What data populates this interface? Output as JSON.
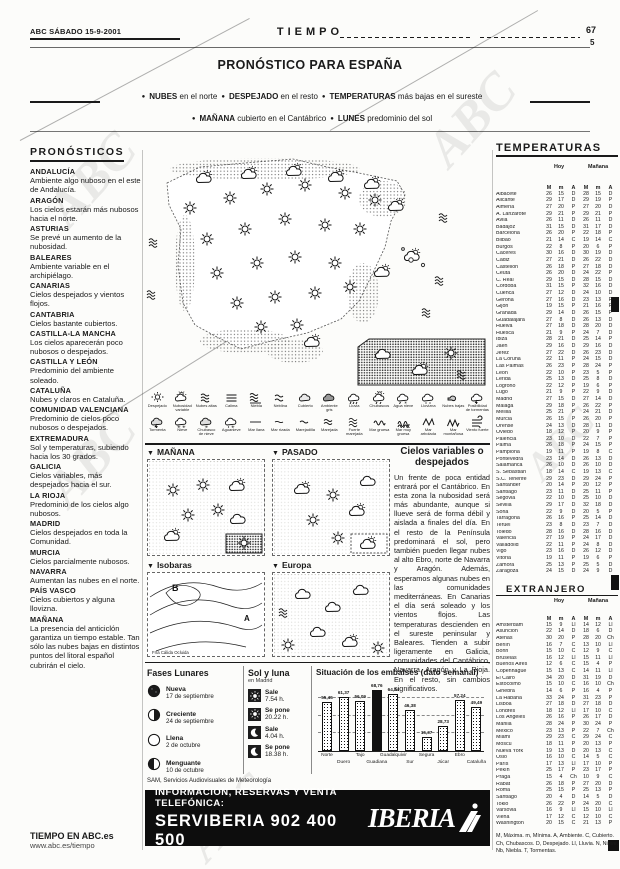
{
  "header": {
    "edition": "ABC SÁBADO 15-9-2001",
    "section": "TIEMPO",
    "page_number": "67",
    "page_sub": "5"
  },
  "banner": {
    "title": "PRONÓSTICO PARA ESPAÑA",
    "bullet_icon": "●",
    "line1": [
      {
        "strong": "NUBES",
        "rest": "en el norte"
      },
      {
        "strong": "DESPEJADO",
        "rest": "en el resto"
      },
      {
        "strong": "TEMPERATURAS",
        "rest": "más bajas en el sureste"
      }
    ],
    "line2": [
      {
        "strong": "MAÑANA",
        "rest": "cubierto en el Cantábrico"
      },
      {
        "strong": "LUNES",
        "rest": "predominio del sol"
      }
    ]
  },
  "pronosticos": {
    "title": "PRONÓSTICOS",
    "entries": [
      {
        "region": "ANDALUCÍA",
        "text": "Ambiente algo nuboso en el este de Andalucía."
      },
      {
        "region": "ARAGÓN",
        "text": "Los cielos estarán más nubosos hacia el norte."
      },
      {
        "region": "ASTURIAS",
        "text": "Se prevé un aumento de la nubosidad."
      },
      {
        "region": "BALEARES",
        "text": "Ambiente variable en el archipiélago."
      },
      {
        "region": "CANARIAS",
        "text": "Cielos despejados y vientos flojos."
      },
      {
        "region": "CANTABRIA",
        "text": "Cielos bastante cubiertos."
      },
      {
        "region": "CASTILLA-LA MANCHA",
        "text": "Los cielos aparecerán poco nubosos o despejados."
      },
      {
        "region": "CASTILLA Y LEÓN",
        "text": "Predominio del ambiente soleado."
      },
      {
        "region": "CATALUÑA",
        "text": "Nubes y claros en Cataluña."
      },
      {
        "region": "COMUNIDAD VALENCIANA",
        "text": "Predominio de cielos poco nubosos o despejados."
      },
      {
        "region": "EXTREMADURA",
        "text": "Sol y temperaturas, subiendo hacia los 30 grados."
      },
      {
        "region": "GALICIA",
        "text": "Cielos variables, más despejados hacia el sur."
      },
      {
        "region": "LA RIOJA",
        "text": "Predominio de los cielos algo nubosos."
      },
      {
        "region": "MADRID",
        "text": "Cielos despejados en toda la Comunidad."
      },
      {
        "region": "MURCIA",
        "text": "Cielos parcialmente nubosos."
      },
      {
        "region": "NAVARRA",
        "text": "Aumentan las nubes en el norte."
      },
      {
        "region": "PAÍS VASCO",
        "text": "Cielos cubiertos y alguna llovizna."
      },
      {
        "region": "MAÑANA",
        "text": "La presencia del anticiclón garantiza un tiempo estable. Tan sólo las nubes bajas en distintos puntos del litoral español cubrirán el cielo."
      }
    ],
    "footer_title": "TIEMPO EN ABC.es",
    "footer_url": "www.abc.es/tiempo"
  },
  "maps": {
    "triangle_icon": "▼",
    "manana_label": "MAÑANA",
    "pasado_label": "PASADO",
    "isobaras_label": "Isobaras",
    "europa_label": "Europa",
    "isobaras_caption": "Fría  Cálida  Ocluida",
    "isobar_b": "B",
    "isobar_a": "A"
  },
  "article": {
    "title": "Cielos variables o despejados",
    "body": "Un frente de poca entidad entrará por el Cantábrico. En esta zona la nubosidad será más abundante, aunque si llueve será de forma débil y aislada a finales del día. En el resto de la Península predominará el sol, pero también pueden llegar nubes al alto Ebro, norte de Navarra y Aragón. Además, esperamos algunas nubes en las comunidades mediterráneas. En Canarias el día será soleado y los vientos flojos. Las temperaturas descienden en el sureste peninsular y Baleares. Tienden a subir ligeramente en Galicia, comunidades del Cantábrico, Navarra, Aragón y La Rioja. En el resto, sin cambios significativos."
  },
  "legend": {
    "row1": [
      {
        "icon": "sun-icon",
        "label": "Despejado"
      },
      {
        "icon": "sun-cloud-icon",
        "label": "Nubosidad variable"
      },
      {
        "icon": "high-clouds-icon",
        "label": "Nubes altas"
      },
      {
        "icon": "haze-icon",
        "label": "Calima"
      },
      {
        "icon": "fog-icon",
        "label": "Niebla"
      },
      {
        "icon": "mist-icon",
        "label": "Neblina"
      },
      {
        "icon": "overcast-icon",
        "label": "Cubierto"
      },
      {
        "icon": "grey-sky-icon",
        "label": "Ambiente gris"
      },
      {
        "icon": "rain-icon",
        "label": "Lluvia"
      },
      {
        "icon": "showers-icon",
        "label": "Chubascos"
      },
      {
        "icon": "sleet-icon",
        "label": "Agua nieve"
      },
      {
        "icon": "drizzle-icon",
        "label": "Llovizna"
      },
      {
        "icon": "low-clouds-icon",
        "label": "Nubes bajas"
      },
      {
        "icon": "possible-storm-icon",
        "label": "Posibilidad de tormentas"
      }
    ],
    "row2": [
      {
        "icon": "storm-icon",
        "label": "Tormenta"
      },
      {
        "icon": "snow-icon",
        "label": "Nieve"
      },
      {
        "icon": "snow-shower-icon",
        "label": "Chubasco de nieve"
      },
      {
        "icon": "sleet2-icon",
        "label": "Aguanieve"
      },
      {
        "icon": "sea-calm-icon",
        "label": "Mar llana"
      },
      {
        "icon": "sea-ripple-icon",
        "label": "Mar rizada"
      },
      {
        "icon": "sea-smooth-icon",
        "label": "Marejadilla"
      },
      {
        "icon": "sea-slight-icon",
        "label": "Marejada"
      },
      {
        "icon": "sea-moderate-icon",
        "label": "Fuerte marejada"
      },
      {
        "icon": "sea-rough-icon",
        "label": "Mar gruesa"
      },
      {
        "icon": "sea-very-rough-icon",
        "label": "Mar muy gruesa"
      },
      {
        "icon": "sea-high-icon",
        "label": "Mar arbolada"
      },
      {
        "icon": "sea-mountain-icon",
        "label": "Mar montañosa"
      },
      {
        "icon": "wind-icon",
        "label": "Viento fuerte"
      }
    ]
  },
  "fases": {
    "title": "Fases Lunares",
    "items": [
      {
        "icon": "moon-new-icon",
        "name": "Nueva",
        "date": "17 de septiembre"
      },
      {
        "icon": "moon-first-quarter-icon",
        "name": "Creciente",
        "date": "24 de septiembre"
      },
      {
        "icon": "moon-full-icon",
        "name": "Llena",
        "date": "2 de octubre"
      },
      {
        "icon": "moon-last-quarter-icon",
        "name": "Menguante",
        "date": "10 de octubre"
      }
    ]
  },
  "sol_luna": {
    "title": "Sol y luna",
    "subtitle": "en Madrid",
    "items": [
      {
        "icon": "sunrise-icon",
        "label": "Sale",
        "value": "7.54 h."
      },
      {
        "icon": "sunset-icon",
        "label": "Se pone",
        "value": "20.22 h."
      },
      {
        "icon": "moonrise-icon",
        "label": "Sale",
        "value": "4.04 h."
      },
      {
        "icon": "moonset-icon",
        "label": "Se pone",
        "value": "18.38 h."
      }
    ]
  },
  "chart_data": {
    "type": "bar",
    "title": "Situación de los embalses (dato semanal)",
    "categories": [
      "Norte",
      "Duero",
      "Tajo",
      "Guadiana",
      "Guadalquivir",
      "Sur",
      "Segura",
      "Júcar",
      "Ebro",
      "Cataluña"
    ],
    "values": [
      55.45,
      61.37,
      56.09,
      68.76,
      64.84,
      46.38,
      15.37,
      28.73,
      57.24,
      49.49
    ],
    "value_labels": [
      "55,45",
      "61,37",
      "56,09",
      "68,76",
      "64,84",
      "46,38",
      "15,37",
      "28,73",
      "57,24",
      "49,49"
    ],
    "xlabel": "",
    "ylabel": "",
    "ylim": [
      0,
      80
    ],
    "grid": "dashed-horizontal",
    "legend_position": "none",
    "highlight_category": "Guadiana"
  },
  "sam_credit": "SAM, Servicios Audiovisuales de Meteorología",
  "temperaturas": {
    "title": "TEMPERATURAS",
    "group_today": "Hoy",
    "group_tomorrow": "Mañana",
    "cols": [
      "M",
      "m",
      "A",
      "M",
      "m",
      "A"
    ],
    "rows": [
      [
        "Albacete",
        "26",
        "15",
        "D",
        "28",
        "15",
        "D"
      ],
      [
        "Alicante",
        "29",
        "17",
        "D",
        "29",
        "19",
        "P"
      ],
      [
        "Almería",
        "27",
        "20",
        "P",
        "27",
        "20",
        "D"
      ],
      [
        "A. Lanzarote",
        "29",
        "21",
        "P",
        "29",
        "21",
        "P"
      ],
      [
        "Ávila",
        "26",
        "11",
        "D",
        "26",
        "11",
        "D"
      ],
      [
        "Badajoz",
        "31",
        "15",
        "D",
        "31",
        "17",
        "D"
      ],
      [
        "Barcelona",
        "26",
        "20",
        "P",
        "22",
        "18",
        "P"
      ],
      [
        "Bilbao",
        "21",
        "14",
        "C",
        "19",
        "14",
        "C"
      ],
      [
        "Burgos",
        "22",
        "8",
        "P",
        "20",
        "6",
        "P"
      ],
      [
        "Cáceres",
        "30",
        "16",
        "D",
        "30",
        "19",
        "D"
      ],
      [
        "Cádiz",
        "27",
        "21",
        "D",
        "26",
        "22",
        "D"
      ],
      [
        "Castellón",
        "26",
        "18",
        "P",
        "27",
        "18",
        "D"
      ],
      [
        "Ceuta",
        "26",
        "20",
        "D",
        "24",
        "22",
        "P"
      ],
      [
        "C. Real",
        "29",
        "15",
        "D",
        "28",
        "15",
        "D"
      ],
      [
        "Córdoba",
        "31",
        "15",
        "P",
        "32",
        "16",
        "D"
      ],
      [
        "Cuenca",
        "27",
        "12",
        "D",
        "24",
        "10",
        "D"
      ],
      [
        "Gerona",
        "27",
        "16",
        "D",
        "23",
        "13",
        "P"
      ],
      [
        "Gijón",
        "19",
        "15",
        "P",
        "21",
        "16",
        "P"
      ],
      [
        "Granada",
        "29",
        "14",
        "D",
        "26",
        "15",
        "P"
      ],
      [
        "Guadalajara",
        "27",
        "8",
        "D",
        "26",
        "13",
        "D"
      ],
      [
        "Huelva",
        "27",
        "18",
        "D",
        "28",
        "20",
        "D"
      ],
      [
        "Huesca",
        "21",
        "9",
        "P",
        "24",
        "7",
        "D"
      ],
      [
        "Ibiza",
        "28",
        "21",
        "D",
        "25",
        "14",
        "P"
      ],
      [
        "Jaén",
        "29",
        "16",
        "D",
        "29",
        "16",
        "D"
      ],
      [
        "Jerez",
        "27",
        "22",
        "D",
        "26",
        "23",
        "D"
      ],
      [
        "La Coruña",
        "22",
        "11",
        "P",
        "24",
        "15",
        "D"
      ],
      [
        "Las Palmas",
        "26",
        "23",
        "P",
        "28",
        "24",
        "P"
      ],
      [
        "León",
        "22",
        "10",
        "P",
        "23",
        "5",
        "P"
      ],
      [
        "Lérida",
        "25",
        "13",
        "D",
        "25",
        "8",
        "D"
      ],
      [
        "Logroño",
        "22",
        "12",
        "P",
        "19",
        "6",
        "P"
      ],
      [
        "Lugo",
        "21",
        "9",
        "P",
        "22",
        "9",
        "D"
      ],
      [
        "Madrid",
        "27",
        "15",
        "D",
        "27",
        "14",
        "D"
      ],
      [
        "Málaga",
        "29",
        "18",
        "P",
        "26",
        "22",
        "P"
      ],
      [
        "Melilla",
        "25",
        "21",
        "P",
        "24",
        "21",
        "D"
      ],
      [
        "Murcia",
        "26",
        "15",
        "P",
        "26",
        "20",
        "P"
      ],
      [
        "Orense",
        "24",
        "13",
        "D",
        "28",
        "11",
        "D"
      ],
      [
        "Oviedo",
        "18",
        "12",
        "P",
        "20",
        "9",
        "P"
      ],
      [
        "Palencia",
        "23",
        "10",
        "D",
        "22",
        "7",
        "P"
      ],
      [
        "Palma",
        "26",
        "18",
        "P",
        "24",
        "15",
        "P"
      ],
      [
        "Pamplona",
        "19",
        "11",
        "P",
        "19",
        "8",
        "C"
      ],
      [
        "Pontevedra",
        "23",
        "14",
        "D",
        "26",
        "13",
        "D"
      ],
      [
        "Salamanca",
        "26",
        "10",
        "D",
        "26",
        "10",
        "D"
      ],
      [
        "S. Sebastián",
        "18",
        "14",
        "C",
        "19",
        "13",
        "C"
      ],
      [
        "S.C. Tenerife",
        "29",
        "23",
        "D",
        "29",
        "24",
        "P"
      ],
      [
        "Santander",
        "20",
        "14",
        "P",
        "20",
        "12",
        "P"
      ],
      [
        "Santiago",
        "23",
        "11",
        "D",
        "25",
        "11",
        "P"
      ],
      [
        "Segovia",
        "22",
        "10",
        "D",
        "25",
        "10",
        "D"
      ],
      [
        "Sevilla",
        "29",
        "17",
        "D",
        "32",
        "18",
        "D"
      ],
      [
        "Soria",
        "22",
        "9",
        "D",
        "20",
        "5",
        "P"
      ],
      [
        "Tarragona",
        "26",
        "16",
        "P",
        "25",
        "14",
        "D"
      ],
      [
        "Teruel",
        "23",
        "8",
        "D",
        "23",
        "7",
        "D"
      ],
      [
        "Toledo",
        "28",
        "16",
        "D",
        "28",
        "16",
        "D"
      ],
      [
        "Valencia",
        "27",
        "19",
        "P",
        "24",
        "17",
        "D"
      ],
      [
        "Valladolid",
        "22",
        "11",
        "P",
        "24",
        "8",
        "D"
      ],
      [
        "Vigo",
        "23",
        "16",
        "D",
        "26",
        "12",
        "D"
      ],
      [
        "Vitoria",
        "19",
        "11",
        "P",
        "19",
        "6",
        "P"
      ],
      [
        "Zamora",
        "25",
        "13",
        "P",
        "25",
        "5",
        "D"
      ],
      [
        "Zaragoza",
        "24",
        "15",
        "D",
        "24",
        "9",
        "D"
      ]
    ]
  },
  "extranjero": {
    "title": "EXTRANJERO",
    "group_today": "Hoy",
    "group_tomorrow": "Mañana",
    "cols": [
      "M",
      "m",
      "A",
      "M",
      "m",
      "A"
    ],
    "rows": [
      [
        "Amsterdam",
        "15",
        "9",
        "Ll",
        "14",
        "12",
        "Ll"
      ],
      [
        "Asunción",
        "22",
        "14",
        "D",
        "18",
        "6",
        "D"
      ],
      [
        "Atenas",
        "30",
        "20",
        "P",
        "28",
        "20",
        "Ch"
      ],
      [
        "Berlín",
        "16",
        "7",
        "C",
        "13",
        "10",
        "Ll"
      ],
      [
        "Bonn",
        "15",
        "10",
        "C",
        "12",
        "9",
        "C"
      ],
      [
        "Bruselas",
        "16",
        "12",
        "Ll",
        "15",
        "11",
        "Ll"
      ],
      [
        "Buenos Aires",
        "12",
        "6",
        "C",
        "15",
        "4",
        "P"
      ],
      [
        "Copenhague",
        "15",
        "13",
        "C",
        "14",
        "11",
        "Ll"
      ],
      [
        "El Cairo",
        "34",
        "20",
        "D",
        "31",
        "19",
        "D"
      ],
      [
        "Estocolmo",
        "15",
        "10",
        "C",
        "16",
        "10",
        "Ch"
      ],
      [
        "Ginebra",
        "14",
        "6",
        "P",
        "16",
        "4",
        "P"
      ],
      [
        "La Habana",
        "33",
        "24",
        "P",
        "31",
        "23",
        "P"
      ],
      [
        "Lisboa",
        "27",
        "18",
        "D",
        "27",
        "18",
        "D"
      ],
      [
        "Londres",
        "18",
        "12",
        "Ll",
        "17",
        "10",
        "C"
      ],
      [
        "Los Ángeles",
        "26",
        "16",
        "P",
        "26",
        "17",
        "D"
      ],
      [
        "Manila",
        "28",
        "24",
        "P",
        "30",
        "24",
        "P"
      ],
      [
        "México",
        "23",
        "13",
        "P",
        "22",
        "7",
        "Ch"
      ],
      [
        "Miami",
        "29",
        "23",
        "C",
        "29",
        "24",
        "C"
      ],
      [
        "Moscú",
        "18",
        "11",
        "P",
        "20",
        "13",
        "P"
      ],
      [
        "Nueva York",
        "19",
        "13",
        "D",
        "20",
        "13",
        "C"
      ],
      [
        "Oslo",
        "16",
        "10",
        "C",
        "14",
        "5",
        "C"
      ],
      [
        "París",
        "17",
        "13",
        "Ll",
        "17",
        "10",
        "P"
      ],
      [
        "Pekín",
        "25",
        "17",
        "P",
        "23",
        "17",
        "P"
      ],
      [
        "Praga",
        "15",
        "4",
        "Ch",
        "10",
        "9",
        "C"
      ],
      [
        "Rabat",
        "26",
        "18",
        "P",
        "27",
        "20",
        "D"
      ],
      [
        "Roma",
        "25",
        "15",
        "P",
        "25",
        "13",
        "P"
      ],
      [
        "Santiago",
        "20",
        "4",
        "D",
        "14",
        "5",
        "D"
      ],
      [
        "Tokio",
        "26",
        "22",
        "P",
        "24",
        "20",
        "C"
      ],
      [
        "Varsovia",
        "16",
        "9",
        "Ll",
        "15",
        "10",
        "Ll"
      ],
      [
        "Viena",
        "17",
        "12",
        "C",
        "12",
        "10",
        "C"
      ],
      [
        "Washington",
        "20",
        "15",
        "C",
        "21",
        "13",
        "P"
      ]
    ],
    "legend_note": "M, Máxima. m, Mínima. A, Ambiente. C, Cubierto. Ch, Chubascos. D, Despejado. Ll, Lluvia. N, Nieve. Nb, Niebla. T, Tormentas."
  },
  "ad": {
    "line1": "INFORMACIÓN, RESERVAS Y VENTA TELEFÓNICA:",
    "line2": "SERVIBERIA 902 400 500",
    "brand": "IBERIA"
  },
  "colors": {
    "ink": "#1a1a1a",
    "ad_bg": "#0d0d0d",
    "stipple": "#444444"
  }
}
